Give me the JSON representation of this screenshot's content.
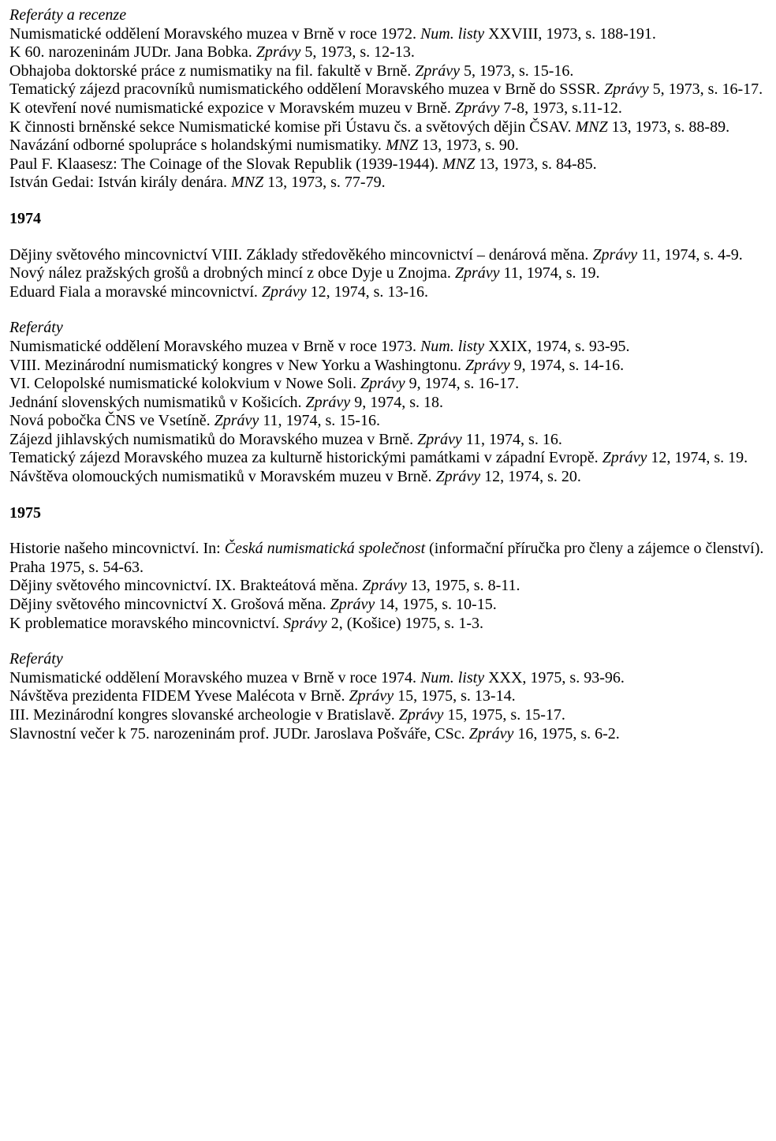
{
  "section1973": {
    "heading": "Referáty a recenze",
    "p1a": "Numismatické oddělení Moravského muzea v Brně v roce 1972. ",
    "p1b": "Num. listy",
    "p1c": " XXVIII, 1973, s. 188-191.",
    "p2a": "K 60. narozeninám JUDr. Jana Bobka. ",
    "p2b": "Zprávy",
    "p2c": " 5, 1973, s. 12-13.",
    "p3a": "Obhajoba doktorské práce z numismatiky na fil. fakultě v Brně. ",
    "p3b": "Zprávy",
    "p3c": " 5, 1973, s. 15-16.",
    "p4a": "Tematický zájezd pracovníků numismatického oddělení Moravského muzea v Brně do SSSR. ",
    "p4b": "Zprávy",
    "p4c": " 5, 1973, s. 16-17.",
    "p5a": "K otevření nové numismatické expozice v Moravském muzeu v Brně. ",
    "p5b": "Zprávy",
    "p5c": " 7-8, 1973, s.11-12.",
    "p6a": "K činnosti brněnské sekce Numismatické komise při Ústavu čs. a světových dějin ČSAV. ",
    "p6b": "MNZ",
    "p6c": " 13, 1973, s. 88-89.",
    "p7a": "Navázání odborné spolupráce s holandskými numismatiky. ",
    "p7b": "MNZ",
    "p7c": " 13, 1973, s. 90.",
    "p8a": "Paul F. Klaasesz: The Coinage of the Slovak Republik (1939-1944). ",
    "p8b": "MNZ",
    "p8c": " 13, 1973, s. 84-85.",
    "p9a": "István Gedai: István király denára. ",
    "p9b": "MNZ",
    "p9c": " 13, 1973, s. 77-79."
  },
  "year1974": "1974",
  "section1974a": {
    "p1a": "Dějiny světového mincovnictví VIII. Základy středověkého mincovnictví – denárová měna. ",
    "p1b": "Zprávy",
    "p1c": " 11, 1974, s. 4-9.",
    "p2a": "Nový nález pražských grošů a drobných mincí z obce Dyje u Znojma. ",
    "p2b": "Zprávy",
    "p2c": " 11, 1974, s. 19.",
    "p3a": "Eduard Fiala a moravské mincovnictví. ",
    "p3b": "Zprávy",
    "p3c": " 12, 1974, s. 13-16."
  },
  "section1974b": {
    "heading": "Referáty",
    "p1a": "Numismatické oddělení Moravského muzea v Brně v roce 1973. ",
    "p1b": "Num. listy",
    "p1c": " XXIX, 1974, s. 93-95.",
    "p2a": "VIII. Mezinárodní numismatický kongres v New Yorku a Washingtonu. ",
    "p2b": "Zprávy",
    "p2c": " 9, 1974, s. 14-16.",
    "p3a": "VI. Celopolské numismatické kolokvium v Nowe Soli. ",
    "p3b": "Zprávy",
    "p3c": " 9, 1974, s. 16-17.",
    "p4a": "Jednání slovenských numismatiků v Košicích. ",
    "p4b": "Zprávy",
    "p4c": " 9, 1974, s. 18.",
    "p5a": "Nová pobočka ČNS ve Vsetíně. ",
    "p5b": "Zprávy",
    "p5c": " 11, 1974, s. 15-16.",
    "p6a": "Zájezd jihlavských numismatiků do Moravského muzea v Brně. ",
    "p6b": "Zprávy",
    "p6c": " 11, 1974, s. 16.",
    "p7a": "Tematický zájezd Moravského muzea za kulturně historickými památkami v západní Evropě. ",
    "p7b": "Zprávy",
    "p7c": " 12, 1974, s. 19.",
    "p8a": "Návštěva olomouckých numismatiků v Moravském muzeu v Brně. ",
    "p8b": "Zprávy",
    "p8c": " 12, 1974, s. 20."
  },
  "year1975": "1975",
  "section1975a": {
    "p1a": "Historie našeho mincovnictví. In: ",
    "p1b": "Česká numismatická společnost",
    "p1c": " (informační příručka pro členy a zájemce o členství). Praha 1975, s. 54-63.",
    "p2a": "Dějiny světového mincovnictví. IX. Brakteátová měna. ",
    "p2b": "Zprávy",
    "p2c": " 13, 1975, s. 8-11.",
    "p3a": "Dějiny světového mincovnictví X. Grošová měna. ",
    "p3b": "Zprávy",
    "p3c": " 14, 1975, s. 10-15.",
    "p4a": "K problematice moravského mincovnictví. ",
    "p4b": "Správy",
    "p4c": " 2, (Košice) 1975, s. 1-3."
  },
  "section1975b": {
    "heading": "Referáty",
    "p1a": "Numismatické oddělení Moravského muzea v Brně v roce 1974. ",
    "p1b": "Num. listy",
    "p1c": " XXX, 1975, s. 93-96.",
    "p2a": "Návštěva prezidenta FIDEM Yvese Malécota v Brně. ",
    "p2b": "Zprávy",
    "p2c": " 15, 1975, s. 13-14.",
    "p3a": "III. Mezinárodní kongres slovanské archeologie v Bratislavě. ",
    "p3b": "Zprávy",
    "p3c": " 15, 1975, s. 15-17.",
    "p4a": "Slavnostní večer k 75. narozeninám prof. JUDr. Jaroslava Pošváře, CSc. ",
    "p4b": "Zprávy",
    "p4c": " 16, 1975, s. 6-2."
  }
}
